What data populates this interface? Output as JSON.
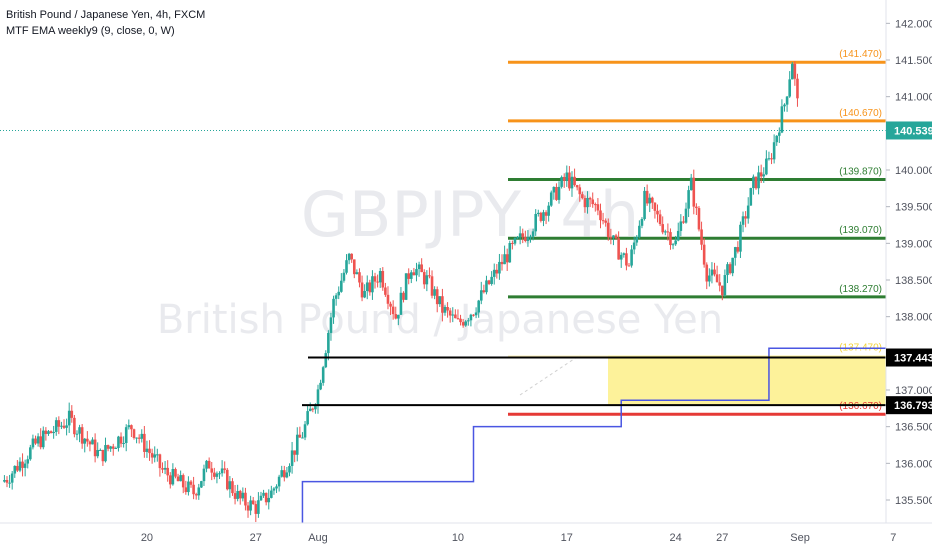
{
  "header": {
    "title": "British Pound / Japanese Yen, 4h, FXCM",
    "indicator": "MTF EMA weekly9 (9, close, 0, W)"
  },
  "watermark": {
    "symbol": "GBPJPY, 4h",
    "name": "British Pound / Japanese Yen"
  },
  "colors": {
    "up": "#26a69a",
    "down": "#ef5350",
    "orange": "#f7931a",
    "green": "#2e7d32",
    "red": "#e53935",
    "black": "#000000",
    "zone": "#fdf29a",
    "ema": "#4a56e2",
    "last_price": "#26a69a"
  },
  "chart_data": {
    "type": "candlestick",
    "y_ticks": [
      "135.500",
      "136.000",
      "136.500",
      "137.000",
      "137.500",
      "138.000",
      "138.500",
      "139.000",
      "139.500",
      "140.000",
      "140.500",
      "141.000",
      "141.500",
      "142.000"
    ],
    "ylim": [
      135.2,
      142.2
    ],
    "x_ticks": [
      {
        "label": "20",
        "day": -11
      },
      {
        "label": "27",
        "day": -4
      },
      {
        "label": "Aug",
        "day": 0
      },
      {
        "label": "10",
        "day": 9
      },
      {
        "label": "17",
        "day": 16
      },
      {
        "label": "24",
        "day": 23
      },
      {
        "label": "27",
        "day": 26
      },
      {
        "label": "Sep",
        "day": 31
      },
      {
        "label": "7",
        "day": 37
      }
    ],
    "levels": [
      {
        "label": "(141.470)",
        "value": 141.47,
        "color": "orange"
      },
      {
        "label": "(140.670)",
        "value": 140.67,
        "color": "orange"
      },
      {
        "label": "(139.870)",
        "value": 139.87,
        "color": "green"
      },
      {
        "label": "(139.070)",
        "value": 139.07,
        "color": "green"
      },
      {
        "label": "(138.270)",
        "value": 138.27,
        "color": "green"
      },
      {
        "label": "(137.470)",
        "value": 137.47,
        "color": "zone"
      },
      {
        "label": "(136.670)",
        "value": 136.67,
        "color": "red"
      }
    ],
    "box": {
      "top": 137.443,
      "bottom": 136.793
    },
    "price_tags": [
      {
        "label": "140.539",
        "value": 140.539,
        "kind": "last"
      },
      {
        "label": "137.443",
        "value": 137.443,
        "kind": "box"
      },
      {
        "label": "136.793",
        "value": 136.793,
        "kind": "box"
      }
    ],
    "ema_steps": [
      {
        "from": -1,
        "to": 10,
        "value": 135.75
      },
      {
        "from": 10,
        "to": 19.5,
        "value": 136.5
      },
      {
        "from": 19.5,
        "to": 29,
        "value": 136.86
      },
      {
        "from": 29,
        "to": 38,
        "value": 137.57
      }
    ],
    "price_path": [
      {
        "day": -28,
        "price": 135.3
      },
      {
        "day": -26,
        "price": 135.4
      },
      {
        "day": -24,
        "price": 135.2
      },
      {
        "day": -22,
        "price": 135.5
      },
      {
        "day": -20,
        "price": 135.8
      },
      {
        "day": -18,
        "price": 136.3
      },
      {
        "day": -16,
        "price": 136.6
      },
      {
        "day": -14,
        "price": 136.1
      },
      {
        "day": -12,
        "price": 136.5
      },
      {
        "day": -10,
        "price": 135.9
      },
      {
        "day": -8,
        "price": 135.6
      },
      {
        "day": -7,
        "price": 136.0
      },
      {
        "day": -6,
        "price": 135.8
      },
      {
        "day": -5,
        "price": 135.5
      },
      {
        "day": -4,
        "price": 135.4
      },
      {
        "day": -3,
        "price": 135.6
      },
      {
        "day": -2,
        "price": 136.0
      },
      {
        "day": -1,
        "price": 136.4
      },
      {
        "day": 0,
        "price": 137.0
      },
      {
        "day": 1,
        "price": 138.2
      },
      {
        "day": 2,
        "price": 138.8
      },
      {
        "day": 3,
        "price": 138.3
      },
      {
        "day": 4,
        "price": 138.6
      },
      {
        "day": 5,
        "price": 138.0
      },
      {
        "day": 6,
        "price": 138.7
      },
      {
        "day": 7,
        "price": 138.5
      },
      {
        "day": 8,
        "price": 138.1
      },
      {
        "day": 9,
        "price": 137.9
      },
      {
        "day": 10,
        "price": 138.1
      },
      {
        "day": 12,
        "price": 138.8
      },
      {
        "day": 14,
        "price": 139.3
      },
      {
        "day": 16,
        "price": 139.9
      },
      {
        "day": 17,
        "price": 139.6
      },
      {
        "day": 18,
        "price": 139.5
      },
      {
        "day": 19,
        "price": 139.0
      },
      {
        "day": 20,
        "price": 138.7
      },
      {
        "day": 21,
        "price": 139.6
      },
      {
        "day": 22,
        "price": 139.3
      },
      {
        "day": 23,
        "price": 139.0
      },
      {
        "day": 24,
        "price": 139.8
      },
      {
        "day": 25,
        "price": 138.6
      },
      {
        "day": 26,
        "price": 138.4
      },
      {
        "day": 27,
        "price": 139.0
      },
      {
        "day": 28,
        "price": 139.8
      },
      {
        "day": 29,
        "price": 140.1
      },
      {
        "day": 30,
        "price": 140.9
      },
      {
        "day": 30.5,
        "price": 141.5
      },
      {
        "day": 31,
        "price": 140.6
      }
    ]
  }
}
